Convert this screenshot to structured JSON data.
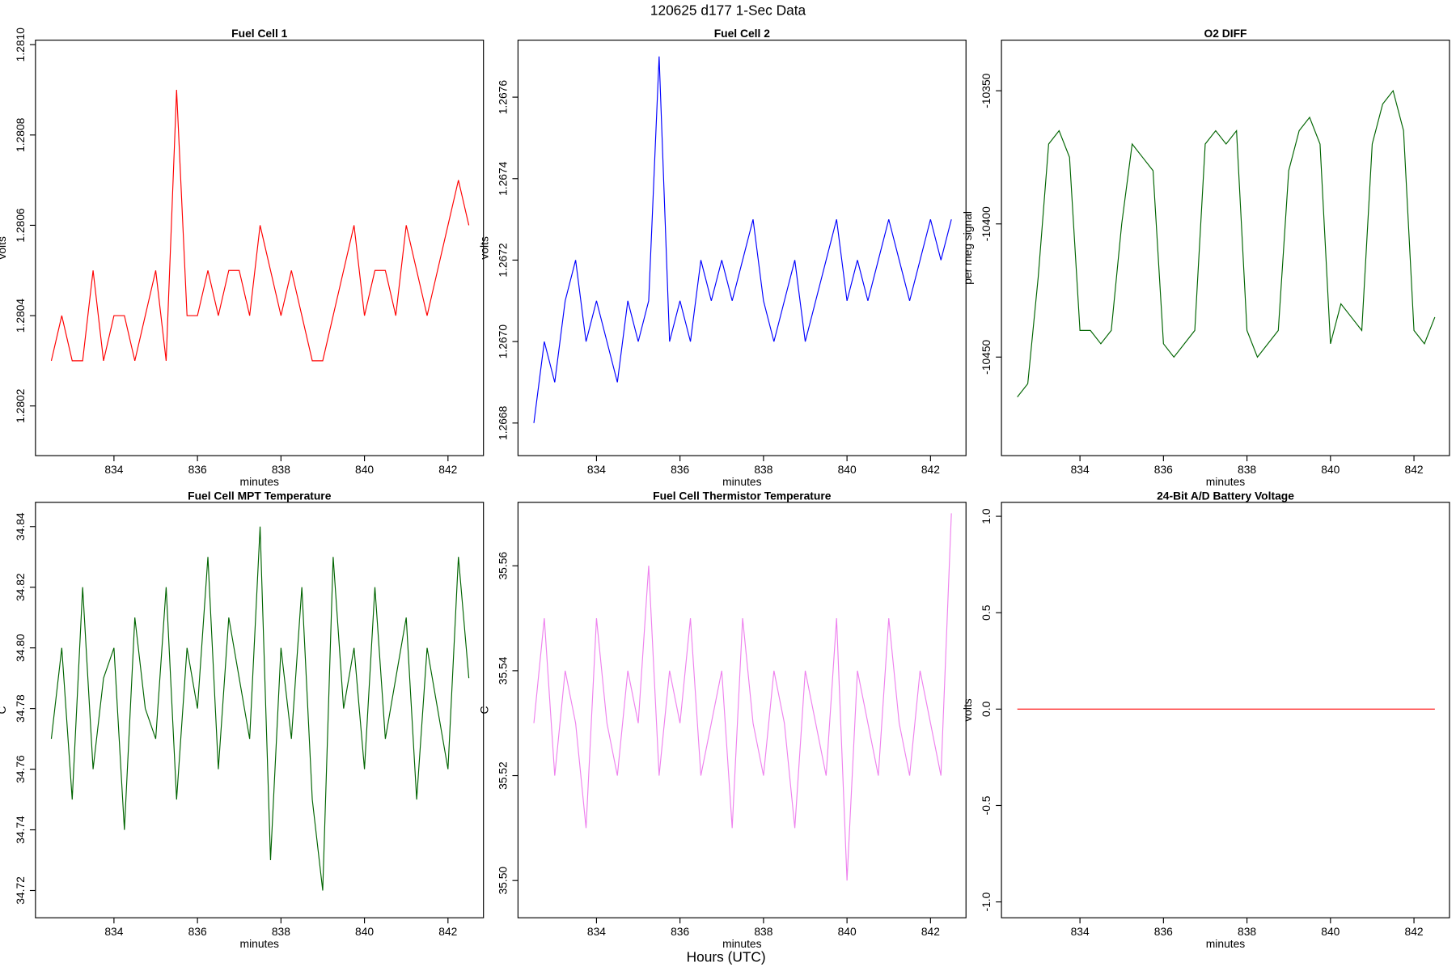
{
  "title": "120625   d177   1-Sec Data",
  "xlabel": "Hours (UTC)",
  "chart_data": [
    {
      "type": "line",
      "title": "Fuel Cell 1",
      "xlabel": "minutes",
      "ylabel": "volts",
      "color": "#ff0000",
      "x": [
        832.5,
        832.75,
        833,
        833.25,
        833.5,
        833.75,
        834,
        834.25,
        834.5,
        834.75,
        835,
        835.25,
        835.5,
        835.75,
        836,
        836.25,
        836.5,
        836.75,
        837,
        837.25,
        837.5,
        837.75,
        838,
        838.25,
        838.5,
        838.75,
        839,
        839.25,
        839.5,
        839.75,
        840,
        840.25,
        840.5,
        840.75,
        841,
        841.25,
        841.5,
        841.75,
        842,
        842.25,
        842.5
      ],
      "values": [
        1.2803,
        1.2804,
        1.2803,
        1.2803,
        1.2805,
        1.2803,
        1.2804,
        1.2804,
        1.2803,
        1.2804,
        1.2805,
        1.2803,
        1.2809,
        1.2804,
        1.2804,
        1.2805,
        1.2804,
        1.2805,
        1.2805,
        1.2804,
        1.2806,
        1.2805,
        1.2804,
        1.2805,
        1.2804,
        1.2803,
        1.2803,
        1.2804,
        1.2805,
        1.2806,
        1.2804,
        1.2805,
        1.2805,
        1.2804,
        1.2806,
        1.2805,
        1.2804,
        1.2805,
        1.2806,
        1.2807,
        1.2806
      ],
      "xlim": [
        832.12,
        842.85
      ],
      "xticks": [
        834,
        836,
        838,
        840,
        842
      ],
      "ylim": [
        1.28009,
        1.28101
      ],
      "yticks": [
        1.2802,
        1.2804,
        1.2806,
        1.2808,
        {
          "value": 1.281,
          "label": "1.2810"
        }
      ]
    },
    {
      "type": "line",
      "title": "Fuel Cell 2",
      "xlabel": "minutes",
      "ylabel": "volts",
      "color": "#0000ff",
      "x": [
        832.5,
        832.75,
        833,
        833.25,
        833.5,
        833.75,
        834,
        834.25,
        834.5,
        834.75,
        835,
        835.25,
        835.5,
        835.75,
        836,
        836.25,
        836.5,
        836.75,
        837,
        837.25,
        837.5,
        837.75,
        838,
        838.25,
        838.5,
        838.75,
        839,
        839.25,
        839.5,
        839.75,
        840,
        840.25,
        840.5,
        840.75,
        841,
        841.25,
        841.5,
        841.75,
        842,
        842.25,
        842.5
      ],
      "values": [
        1.2668,
        1.267,
        1.2669,
        1.2671,
        1.2672,
        1.267,
        1.2671,
        1.267,
        1.2669,
        1.2671,
        1.267,
        1.2671,
        1.2677,
        1.267,
        1.2671,
        1.267,
        1.2672,
        1.2671,
        1.2672,
        1.2671,
        1.2672,
        1.2673,
        1.2671,
        1.267,
        1.2671,
        1.2672,
        1.267,
        1.2671,
        1.2672,
        1.2673,
        1.2671,
        1.2672,
        1.2671,
        1.2672,
        1.2673,
        1.2672,
        1.2671,
        1.2672,
        1.2673,
        1.2672,
        1.2673
      ],
      "xlim": [
        832.12,
        842.85
      ],
      "xticks": [
        834,
        836,
        838,
        840,
        842
      ],
      "ylim": [
        1.26672,
        1.26774
      ],
      "yticks": [
        1.2668,
        {
          "value": 1.267,
          "label": "1.2670"
        },
        1.2672,
        1.2674,
        1.2676
      ]
    },
    {
      "type": "line",
      "title": "O2 DIFF",
      "xlabel": "minutes",
      "ylabel": "per meg signal",
      "color": "#006400",
      "x": [
        832.5,
        832.75,
        833,
        833.25,
        833.5,
        833.75,
        834,
        834.25,
        834.5,
        834.75,
        835,
        835.25,
        835.5,
        835.75,
        836,
        836.25,
        836.5,
        836.75,
        837,
        837.25,
        837.5,
        837.75,
        838,
        838.25,
        838.5,
        838.75,
        839,
        839.25,
        839.5,
        839.75,
        840,
        840.25,
        840.5,
        840.75,
        841,
        841.25,
        841.5,
        841.75,
        842,
        842.25,
        842.5
      ],
      "values": [
        -10465,
        -10460,
        -10420,
        -10370,
        -10365,
        -10375,
        -10440,
        -10440,
        -10445,
        -10440,
        -10400,
        -10370,
        -10375,
        -10380,
        -10445,
        -10450,
        -10445,
        -10440,
        -10370,
        -10365,
        -10370,
        -10365,
        -10440,
        -10450,
        -10445,
        -10440,
        -10380,
        -10365,
        -10360,
        -10370,
        -10445,
        -10430,
        -10435,
        -10440,
        -10370,
        -10355,
        -10350,
        -10365,
        -10440,
        -10445,
        -10435
      ],
      "xlim": [
        832.12,
        842.85
      ],
      "xticks": [
        834,
        836,
        838,
        840,
        842
      ],
      "ylim": [
        -10487,
        -10331
      ],
      "yticks": [
        -10450,
        -10400,
        -10350
      ]
    },
    {
      "type": "line",
      "title": "Fuel Cell MPT Temperature",
      "xlabel": "minutes",
      "ylabel": "C",
      "color": "#006400",
      "x": [
        832.5,
        832.75,
        833,
        833.25,
        833.5,
        833.75,
        834,
        834.25,
        834.5,
        834.75,
        835,
        835.25,
        835.5,
        835.75,
        836,
        836.25,
        836.5,
        836.75,
        837,
        837.25,
        837.5,
        837.75,
        838,
        838.25,
        838.5,
        838.75,
        839,
        839.25,
        839.5,
        839.75,
        840,
        840.25,
        840.5,
        840.75,
        841,
        841.25,
        841.5,
        841.75,
        842,
        842.25,
        842.5
      ],
      "values": [
        34.77,
        34.8,
        34.75,
        34.82,
        34.76,
        34.79,
        34.8,
        34.74,
        34.81,
        34.78,
        34.77,
        34.82,
        34.75,
        34.8,
        34.78,
        34.83,
        34.76,
        34.81,
        34.79,
        34.77,
        34.84,
        34.73,
        34.8,
        34.77,
        34.82,
        34.75,
        34.72,
        34.83,
        34.78,
        34.8,
        34.76,
        34.82,
        34.77,
        34.79,
        34.81,
        34.75,
        34.8,
        34.78,
        34.76,
        34.83,
        34.79
      ],
      "xlim": [
        832.12,
        842.85
      ],
      "xticks": [
        834,
        836,
        838,
        840,
        842
      ],
      "ylim": [
        34.711,
        34.848
      ],
      "yticks": [
        34.72,
        34.74,
        34.76,
        34.78,
        {
          "value": 34.8,
          "label": "34.80"
        },
        34.82,
        34.84
      ]
    },
    {
      "type": "line",
      "title": "Fuel Cell Thermistor Temperature",
      "xlabel": "minutes",
      "ylabel": "C",
      "color": "#ee82ee",
      "x": [
        832.5,
        832.75,
        833,
        833.25,
        833.5,
        833.75,
        834,
        834.25,
        834.5,
        834.75,
        835,
        835.25,
        835.5,
        835.75,
        836,
        836.25,
        836.5,
        836.75,
        837,
        837.25,
        837.5,
        837.75,
        838,
        838.25,
        838.5,
        838.75,
        839,
        839.25,
        839.5,
        839.75,
        840,
        840.25,
        840.5,
        840.75,
        841,
        841.25,
        841.5,
        841.75,
        842,
        842.25,
        842.5
      ],
      "values": [
        35.53,
        35.55,
        35.52,
        35.54,
        35.53,
        35.51,
        35.55,
        35.53,
        35.52,
        35.54,
        35.53,
        35.56,
        35.52,
        35.54,
        35.53,
        35.55,
        35.52,
        35.53,
        35.54,
        35.51,
        35.55,
        35.53,
        35.52,
        35.54,
        35.53,
        35.51,
        35.54,
        35.53,
        35.52,
        35.55,
        35.5,
        35.54,
        35.53,
        35.52,
        35.55,
        35.53,
        35.52,
        35.54,
        35.53,
        35.52,
        35.57
      ],
      "xlim": [
        832.12,
        842.85
      ],
      "xticks": [
        834,
        836,
        838,
        840,
        842
      ],
      "ylim": [
        35.4929,
        35.5721
      ],
      "yticks": [
        {
          "value": 35.5,
          "label": "35.50"
        },
        35.52,
        35.54,
        35.56
      ]
    },
    {
      "type": "line",
      "title": "24-Bit A/D Battery Voltage",
      "xlabel": "minutes",
      "ylabel": "volts",
      "color": "#ff0000",
      "x": [
        832.5,
        842.5
      ],
      "values": [
        0,
        0
      ],
      "xlim": [
        832.12,
        842.85
      ],
      "xticks": [
        834,
        836,
        838,
        840,
        842
      ],
      "ylim": [
        -1.0823,
        1.0726
      ],
      "yticks": [
        {
          "value": -1,
          "label": "-1.0"
        },
        -0.5,
        {
          "value": 0,
          "label": "0.0"
        },
        0.5,
        {
          "value": 1,
          "label": "1.0"
        }
      ]
    }
  ]
}
